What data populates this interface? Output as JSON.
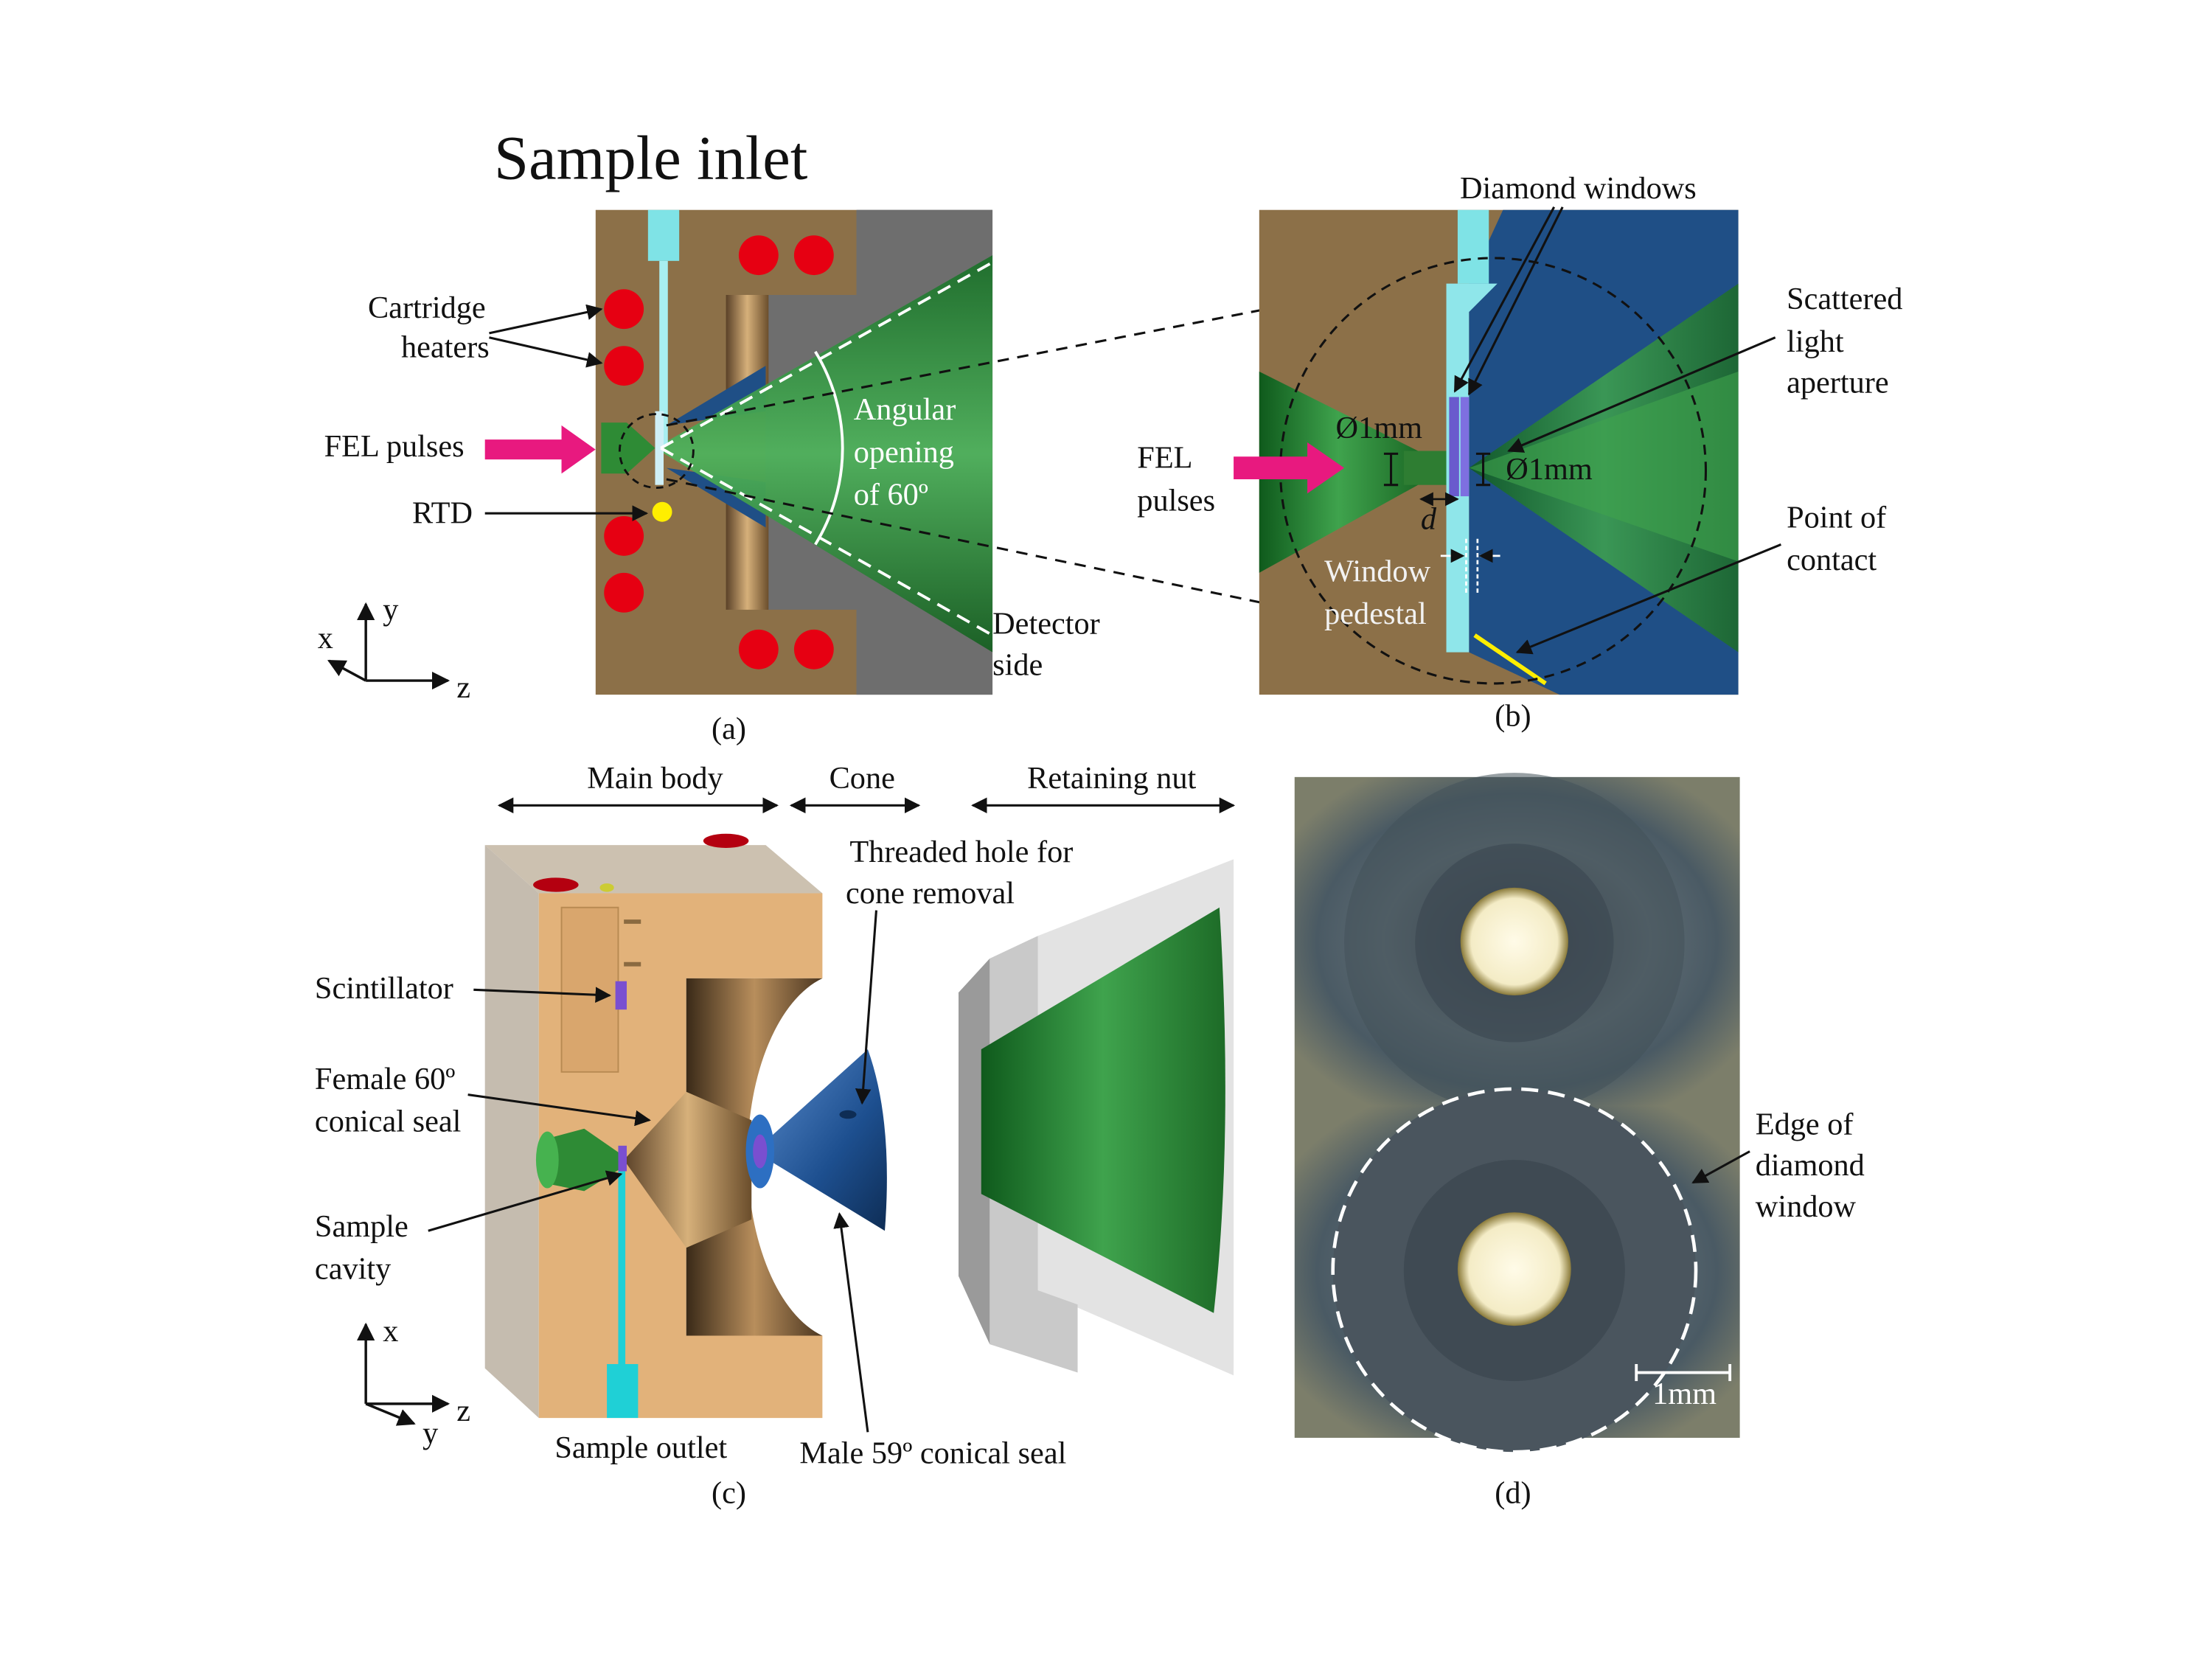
{
  "panel_a": {
    "caption": "(a)",
    "sample_inlet": "Sample inlet",
    "cartridge_heaters_1": "Cartridge",
    "cartridge_heaters_2": "heaters",
    "fel_pulses": "FEL pulses",
    "rtd": "RTD",
    "angular_1": "Angular",
    "angular_2": "opening",
    "angular_3": "of 60º",
    "detector_1": "Detector",
    "detector_2": "side",
    "axis_y": "y",
    "axis_x": "x",
    "axis_z": "z"
  },
  "panel_b": {
    "caption": "(b)",
    "diamond_windows": "Diamond windows",
    "scattered_1": "Scattered",
    "scattered_2": "light",
    "scattered_3": "aperture",
    "fel_1": "FEL",
    "fel_2": "pulses",
    "d1mm_left": "Ø1mm",
    "d1mm_right": "Ø1mm",
    "d_symbol": "d",
    "window_1": "Window",
    "window_2": "pedestal",
    "contact_1": "Point of",
    "contact_2": "contact"
  },
  "panel_c": {
    "caption": "(c)",
    "main_body": "Main body",
    "cone": "Cone",
    "retaining_nut": "Retaining nut",
    "threaded_1": "Threaded hole for",
    "threaded_2": "cone removal",
    "scintillator": "Scintillator",
    "female_1": "Female 60º",
    "female_2": "conical seal",
    "cavity_1": "Sample",
    "cavity_2": "cavity",
    "sample_outlet": "Sample outlet",
    "male_seal": "Male 59º conical seal",
    "axis_x": "x",
    "axis_y": "y",
    "axis_z": "z"
  },
  "panel_d": {
    "caption": "(d)",
    "edge_1": "Edge of",
    "edge_2": "diamond",
    "edge_3": "window",
    "scale": "1mm"
  },
  "colors": {
    "brass": "#8c7048",
    "gray": "#6e6e6e",
    "green": "#2e7d32",
    "blue": "#1f4f86",
    "cyan": "#7fe3e6",
    "magenta": "#e8197f",
    "red": "#e60012",
    "yellow": "#ffee00",
    "orange_body": "#e2b27a"
  },
  "icons": [
    "arrow-icon",
    "axis-triad-icon",
    "heater-icon",
    "rtd-icon"
  ]
}
